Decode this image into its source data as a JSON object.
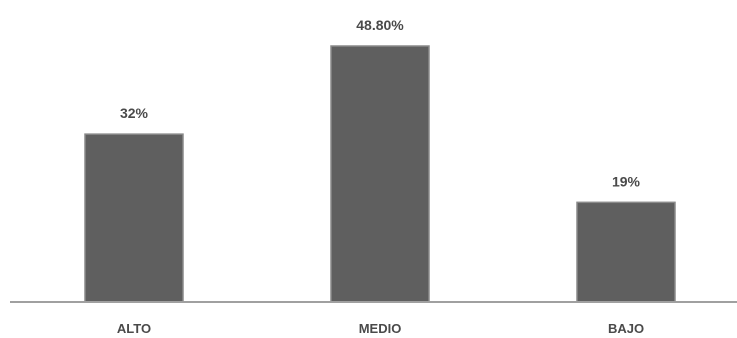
{
  "chart_data": {
    "type": "bar",
    "categories": [
      "ALTO",
      "MEDIO",
      "BAJO"
    ],
    "values": [
      32,
      48.8,
      19
    ],
    "data_labels": [
      "32%",
      "48.80%",
      "19%"
    ],
    "title": "",
    "xlabel": "",
    "ylabel": "",
    "ylim": [
      0,
      48.8
    ],
    "grid": false,
    "legend": "none",
    "colors": {
      "bar_fill": "#5f5f5f",
      "bar_edge": "#8a8a8a",
      "axis": "#a0a0a0",
      "text": "#4a4a4a"
    }
  }
}
